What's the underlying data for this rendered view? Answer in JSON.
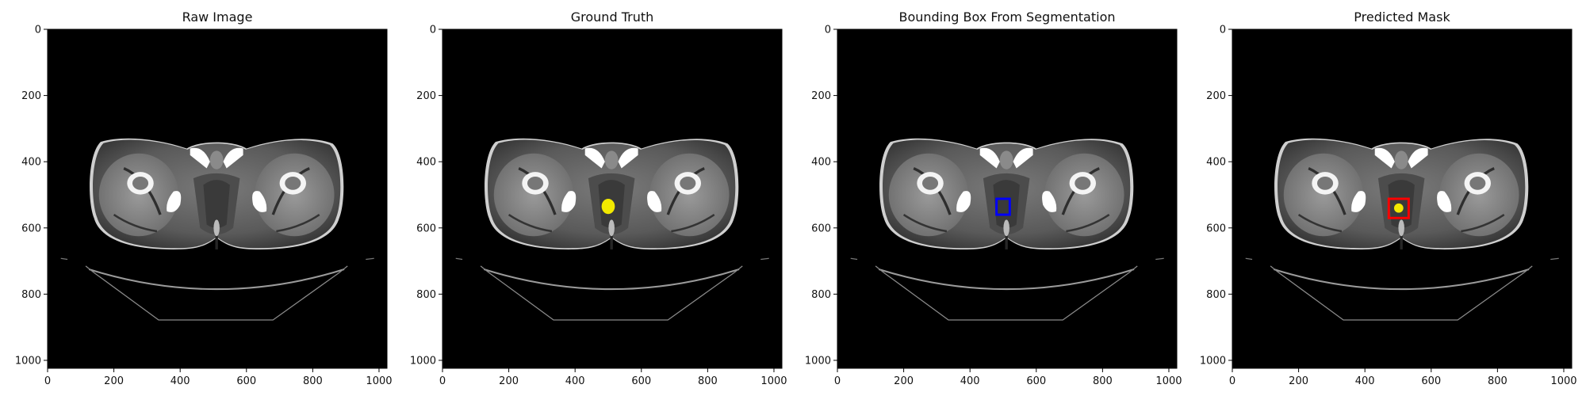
{
  "panels": [
    {
      "title": "Raw Image",
      "overlay": "none"
    },
    {
      "title": "Ground Truth",
      "overlay": "mask"
    },
    {
      "title": "Bounding Box From Segmentation",
      "overlay": "bbox"
    },
    {
      "title": "Predicted Mask",
      "overlay": "pred"
    }
  ],
  "axes": {
    "x_ticks": [
      0,
      200,
      400,
      600,
      800,
      1000
    ],
    "y_ticks": [
      0,
      200,
      400,
      600,
      800,
      1000
    ],
    "range": [
      0,
      1024
    ]
  },
  "overlays": {
    "mask": {
      "color": "#f2e900",
      "center": [
        500,
        535
      ],
      "radius": [
        20,
        23
      ]
    },
    "bbox": {
      "color": "#0000ff",
      "x": [
        480,
        520
      ],
      "y": [
        512,
        560
      ]
    },
    "pred_box": {
      "color": "#ff0000",
      "x": [
        472,
        532
      ],
      "y": [
        512,
        570
      ]
    },
    "pred_mask": {
      "color": "#f2e900",
      "center": [
        502,
        540
      ],
      "radius": [
        14,
        14
      ]
    }
  }
}
